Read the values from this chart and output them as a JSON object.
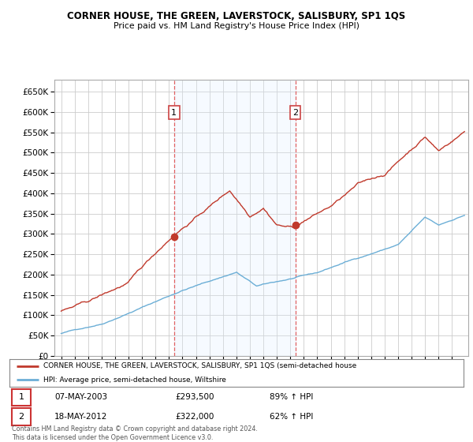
{
  "title": "CORNER HOUSE, THE GREEN, LAVERSTOCK, SALISBURY, SP1 1QS",
  "subtitle": "Price paid vs. HM Land Registry's House Price Index (HPI)",
  "legend_line1": "CORNER HOUSE, THE GREEN, LAVERSTOCK, SALISBURY, SP1 1QS (semi-detached house",
  "legend_line2": "HPI: Average price, semi-detached house, Wiltshire",
  "footer": "Contains HM Land Registry data © Crown copyright and database right 2024.\nThis data is licensed under the Open Government Licence v3.0.",
  "sale1_label": "1",
  "sale1_date": "07-MAY-2003",
  "sale1_price": "£293,500",
  "sale1_hpi": "89% ↑ HPI",
  "sale1_year": 2003.37,
  "sale1_value": 293500,
  "sale2_label": "2",
  "sale2_date": "18-MAY-2012",
  "sale2_price": "£322,000",
  "sale2_hpi": "62% ↑ HPI",
  "sale2_year": 2012.37,
  "sale2_value": 322000,
  "red_color": "#c0392b",
  "blue_color": "#6baed6",
  "vline_color": "#e05050",
  "shade_color": "#ddeeff",
  "ylim": [
    0,
    680000
  ],
  "yticks": [
    0,
    50000,
    100000,
    150000,
    200000,
    250000,
    300000,
    350000,
    400000,
    450000,
    500000,
    550000,
    600000,
    650000
  ],
  "xlim_start": 1994.5,
  "xlim_end": 2025.2
}
